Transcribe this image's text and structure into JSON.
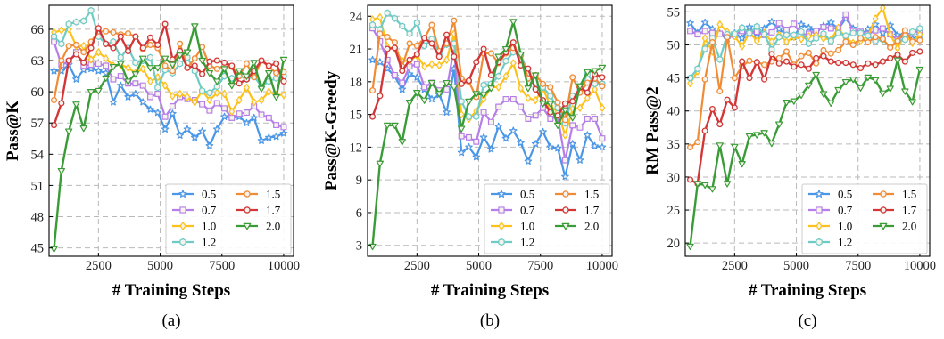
{
  "styles": [
    {
      "color": "#4a97e8",
      "marker": "star"
    },
    {
      "color": "#b57ee8",
      "marker": "square"
    },
    {
      "color": "#fcc11a",
      "marker": "diamond"
    },
    {
      "color": "#6ecbc6",
      "marker": "hexagon"
    },
    {
      "color": "#f08c35",
      "marker": "circle"
    },
    {
      "color": "#d23637",
      "marker": "circle"
    },
    {
      "color": "#3a9c36",
      "marker": "triangle-down"
    }
  ],
  "chart_data": [
    {
      "type": "line",
      "caption": "(a)",
      "xlabel": "# Training Steps",
      "ylabel": "Pass@K",
      "xlim": [
        500,
        10400
      ],
      "ylim": [
        44.2,
        68.3
      ],
      "xticks": [
        2500,
        5000,
        7500,
        10000
      ],
      "yticks": [
        45,
        48,
        51,
        54,
        57,
        60,
        63,
        66
      ],
      "grid": true,
      "legend_position": "lower-right",
      "x": [
        700,
        1000,
        1300,
        1600,
        1900,
        2200,
        2500,
        2800,
        3100,
        3400,
        3700,
        4000,
        4300,
        4600,
        4900,
        5200,
        5500,
        5800,
        6100,
        6400,
        6700,
        7000,
        7300,
        7600,
        7900,
        8200,
        8500,
        8800,
        9100,
        9400,
        9700,
        10000
      ],
      "series": [
        {
          "name": "0.5",
          "values": [
            62.0,
            62.0,
            62.6,
            61.2,
            62.1,
            62.2,
            62.0,
            61.8,
            59.0,
            60.6,
            59.5,
            59.8,
            59.0,
            58.3,
            58.0,
            56.4,
            57.9,
            55.8,
            56.4,
            55.6,
            56.2,
            54.8,
            56.4,
            57.6,
            57.5,
            57.6,
            57.0,
            57.5,
            55.3,
            55.6,
            55.7,
            56.0
          ]
        },
        {
          "name": "0.7",
          "values": [
            64.8,
            62.6,
            62.9,
            63.8,
            62.5,
            62.6,
            62.7,
            62.5,
            61.2,
            61.5,
            60.8,
            60.8,
            60.6,
            59.5,
            59.8,
            57.6,
            58.6,
            59.5,
            59.3,
            59.2,
            58.8,
            58.2,
            58.9,
            58.4,
            57.5,
            57.9,
            58.0,
            58.6,
            57.8,
            57.5,
            56.8,
            56.6
          ]
        },
        {
          "name": "1.0",
          "values": [
            65.7,
            65.9,
            66.0,
            64.4,
            64.4,
            63.1,
            63.8,
            63.2,
            62.5,
            62.6,
            62.3,
            61.8,
            62.2,
            61.0,
            61.4,
            60.6,
            59.6,
            59.8,
            59.5,
            59.0,
            60.1,
            59.2,
            59.9,
            59.8,
            58.1,
            59.2,
            60.4,
            59.0,
            59.2,
            60.0,
            59.7,
            59.7
          ]
        },
        {
          "name": "1.2",
          "values": [
            65.3,
            64.6,
            66.5,
            66.7,
            66.8,
            67.8,
            65.3,
            64.6,
            64.8,
            63.3,
            64.2,
            62.8,
            63.0,
            63.3,
            60.4,
            62.1,
            61.8,
            62.7,
            63.3,
            62.0,
            60.1,
            59.9,
            60.5,
            61.5,
            61.3,
            61.6,
            61.2,
            61.5,
            60.5,
            61.0,
            61.3,
            61.5
          ]
        },
        {
          "name": "1.5",
          "values": [
            59.2,
            63.0,
            64.4,
            64.5,
            63.8,
            64.8,
            65.8,
            65.8,
            65.7,
            65.5,
            65.6,
            65.3,
            64.1,
            64.5,
            64.2,
            62.5,
            62.0,
            64.6,
            62.3,
            63.2,
            64.3,
            62.5,
            62.2,
            62.5,
            62.4,
            61.5,
            62.7,
            61.4,
            63.0,
            62.4,
            61.8,
            61.9
          ]
        },
        {
          "name": "1.7",
          "values": [
            56.8,
            58.9,
            63.0,
            63.6,
            62.8,
            64.2,
            66.1,
            64.6,
            64.2,
            65.3,
            63.9,
            65.3,
            64.2,
            65.2,
            64.5,
            66.5,
            63.1,
            63.9,
            62.3,
            62.5,
            61.7,
            62.9,
            63.0,
            62.8,
            62.5,
            60.8,
            61.2,
            62.0,
            63.0,
            62.5,
            62.7,
            61.0
          ]
        },
        {
          "name": "2.0",
          "values": [
            44.9,
            52.4,
            56.2,
            58.8,
            56.5,
            60.0,
            60.1,
            61.3,
            62.4,
            62.7,
            61.0,
            61.7,
            63.2,
            62.3,
            62.3,
            63.2,
            62.6,
            63.5,
            63.8,
            66.3,
            63.0,
            61.8,
            61.0,
            62.2,
            60.6,
            62.0,
            61.5,
            62.8,
            60.3,
            61.8,
            59.5,
            63.1
          ]
        }
      ]
    },
    {
      "type": "line",
      "caption": "(b)",
      "xlabel": "# Training Steps",
      "ylabel": "Pass@K-Greedy",
      "xlim": [
        500,
        10400
      ],
      "ylim": [
        2.0,
        25.0
      ],
      "xticks": [
        2500,
        5000,
        7500,
        10000
      ],
      "yticks": [
        3,
        6,
        9,
        12,
        15,
        18,
        21,
        24
      ],
      "grid": true,
      "legend_position": "lower-right",
      "x": [
        700,
        1000,
        1300,
        1600,
        1900,
        2200,
        2500,
        2800,
        3100,
        3400,
        3700,
        4000,
        4300,
        4600,
        4900,
        5200,
        5500,
        5800,
        6100,
        6400,
        6700,
        7000,
        7300,
        7600,
        7900,
        8200,
        8500,
        8800,
        9100,
        9400,
        9700,
        10000
      ],
      "series": [
        {
          "name": "0.5",
          "values": [
            20.0,
            19.8,
            19.2,
            18.5,
            17.3,
            18.7,
            18.4,
            17.3,
            16.4,
            16.8,
            15.2,
            19.2,
            11.5,
            12.0,
            11.1,
            12.9,
            11.8,
            13.9,
            12.8,
            13.5,
            12.4,
            10.7,
            12.3,
            13.4,
            12.0,
            11.9,
            9.3,
            12.3,
            10.8,
            13.1,
            12.1,
            12.0
          ]
        },
        {
          "name": "0.7",
          "values": [
            22.9,
            21.7,
            20.0,
            18.6,
            17.9,
            19.4,
            19.6,
            17.5,
            17.9,
            17.2,
            17.3,
            21.1,
            13.0,
            12.9,
            12.5,
            15.2,
            14.3,
            15.7,
            16.4,
            16.4,
            15.7,
            14.6,
            14.9,
            15.6,
            14.6,
            14.8,
            10.8,
            14.0,
            13.8,
            14.6,
            14.6,
            12.8
          ]
        },
        {
          "name": "1.0",
          "values": [
            23.7,
            23.9,
            21.2,
            21.0,
            19.9,
            19.9,
            20.4,
            19.4,
            19.6,
            19.5,
            20.0,
            22.4,
            15.0,
            14.6,
            15.3,
            16.4,
            17.5,
            17.5,
            18.5,
            19.7,
            17.4,
            16.5,
            16.3,
            17.4,
            15.8,
            15.2,
            13.1,
            15.5,
            15.6,
            16.5,
            17.3,
            15.6
          ]
        },
        {
          "name": "1.2",
          "values": [
            23.2,
            22.8,
            24.3,
            23.8,
            23.1,
            22.4,
            23.4,
            21.3,
            21.9,
            20.6,
            21.4,
            21.5,
            16.2,
            14.8,
            14.8,
            17.7,
            17.8,
            18.5,
            19.9,
            20.7,
            20.5,
            18.8,
            17.4,
            17.5,
            16.7,
            15.6,
            14.2,
            16.7,
            17.2,
            18.7,
            17.8,
            17.8
          ]
        },
        {
          "name": "1.5",
          "values": [
            17.2,
            22.4,
            22.1,
            21.6,
            19.4,
            21.5,
            21.3,
            22.0,
            23.2,
            20.8,
            21.5,
            23.6,
            18.3,
            18.0,
            16.6,
            20.6,
            20.6,
            19.7,
            20.6,
            21.1,
            20.4,
            18.3,
            18.6,
            17.8,
            17.5,
            16.1,
            14.5,
            18.4,
            17.0,
            17.9,
            18.3,
            17.6
          ]
        },
        {
          "name": "1.7",
          "values": [
            14.8,
            16.7,
            21.0,
            21.1,
            19.0,
            20.0,
            20.5,
            22.0,
            21.5,
            20.3,
            22.3,
            20.3,
            17.8,
            18.1,
            19.8,
            21.0,
            18.6,
            19.8,
            20.7,
            21.6,
            19.5,
            19.2,
            17.3,
            16.3,
            15.2,
            14.9,
            16.0,
            16.2,
            17.5,
            17.0,
            18.7,
            18.4
          ]
        },
        {
          "name": "2.0",
          "values": [
            2.9,
            10.5,
            14.0,
            14.0,
            12.5,
            16.1,
            17.0,
            16.3,
            17.9,
            16.9,
            17.9,
            17.5,
            13.7,
            16.2,
            16.9,
            16.8,
            17.4,
            20.3,
            21.0,
            23.5,
            20.5,
            17.4,
            18.6,
            16.0,
            16.0,
            14.0,
            15.4,
            14.7,
            17.6,
            18.9,
            19.0,
            19.3
          ]
        }
      ]
    },
    {
      "type": "line",
      "caption": "(c)",
      "xlabel": "# Training Steps",
      "ylabel": "RM Pass@2",
      "xlim": [
        500,
        10400
      ],
      "ylim": [
        18.0,
        56.0
      ],
      "xticks": [
        2500,
        5000,
        7500,
        10000
      ],
      "yticks": [
        20,
        25,
        30,
        35,
        40,
        45,
        50,
        55
      ],
      "grid": true,
      "legend_position": "lower-right",
      "x": [
        700,
        1000,
        1300,
        1600,
        1900,
        2200,
        2500,
        2800,
        3100,
        3400,
        3700,
        4000,
        4300,
        4600,
        4900,
        5200,
        5500,
        5800,
        6100,
        6400,
        6700,
        7000,
        7300,
        7600,
        7900,
        8200,
        8500,
        8800,
        9100,
        9400,
        9700,
        10000
      ],
      "series": [
        {
          "name": "0.5",
          "values": [
            53.3,
            51.8,
            53.4,
            52.4,
            51.7,
            50.9,
            51.8,
            51.0,
            52.7,
            51.2,
            52.5,
            53.5,
            52.4,
            51.6,
            51.2,
            53.1,
            52.6,
            52.0,
            52.9,
            53.4,
            52.4,
            54.0,
            52.5,
            51.5,
            52.4,
            53.1,
            51.8,
            53.0,
            51.5,
            51.6,
            50.9,
            51.5
          ]
        },
        {
          "name": "0.7",
          "values": [
            52.1,
            51.6,
            52.1,
            51.8,
            51.7,
            51.4,
            51.5,
            52.1,
            51.7,
            52.0,
            51.5,
            51.9,
            53.3,
            52.3,
            53.2,
            51.5,
            51.7,
            52.1,
            52.7,
            52.5,
            52.5,
            54.6,
            52.1,
            52.0,
            51.6,
            52.2,
            52.5,
            51.6,
            50.8,
            51.5,
            51.8,
            52.2
          ]
        },
        {
          "name": "1.0",
          "values": [
            44.2,
            46.0,
            51.0,
            49.0,
            53.1,
            52.0,
            51.3,
            49.8,
            51.9,
            50.6,
            51.8,
            50.5,
            51.5,
            50.5,
            51.2,
            50.9,
            51.3,
            51.5,
            51.0,
            50.8,
            52.6,
            51.0,
            50.3,
            50.6,
            51.3,
            54.0,
            55.6,
            51.6,
            49.5,
            51.6,
            50.3,
            51.6
          ]
        },
        {
          "name": "1.2",
          "values": [
            45.0,
            46.4,
            49.4,
            51.0,
            47.8,
            51.6,
            51.7,
            52.6,
            51.8,
            52.8,
            51.6,
            49.3,
            51.2,
            51.5,
            51.5,
            52.0,
            50.2,
            51.0,
            51.7,
            50.6,
            51.8,
            51.4,
            51.8,
            51.8,
            51.4,
            50.6,
            50.8,
            49.7,
            50.6,
            50.8,
            52.0,
            52.5
          ]
        },
        {
          "name": "1.5",
          "values": [
            34.5,
            35.3,
            44.8,
            50.4,
            43.0,
            51.2,
            45.0,
            46.8,
            47.6,
            47.4,
            47.0,
            47.5,
            48.0,
            49.0,
            47.0,
            48.3,
            48.8,
            47.2,
            49.2,
            48.7,
            49.2,
            50.5,
            50.0,
            51.0,
            50.4,
            51.2,
            50.9,
            49.6,
            50.6,
            52.2,
            50.5,
            50.7
          ]
        },
        {
          "name": "1.7",
          "values": [
            29.6,
            29.0,
            37.0,
            40.3,
            38.0,
            41.7,
            40.5,
            47.5,
            45.0,
            47.4,
            44.8,
            48.6,
            47.2,
            47.5,
            46.7,
            47.0,
            46.4,
            48.0,
            48.3,
            47.5,
            47.3,
            47.3,
            47.0,
            46.5,
            47.2,
            47.0,
            47.5,
            48.0,
            48.5,
            47.5,
            48.8,
            49.0
          ]
        },
        {
          "name": "2.0",
          "values": [
            19.5,
            29.0,
            28.8,
            28.2,
            34.8,
            29.0,
            34.6,
            32.0,
            36.2,
            36.4,
            36.7,
            35.1,
            38.0,
            41.3,
            41.5,
            42.4,
            43.9,
            45.5,
            42.6,
            41.2,
            43.2,
            44.4,
            44.8,
            43.5,
            45.1,
            44.7,
            42.7,
            43.4,
            47.7,
            43.0,
            41.4,
            46.3
          ]
        }
      ]
    }
  ]
}
